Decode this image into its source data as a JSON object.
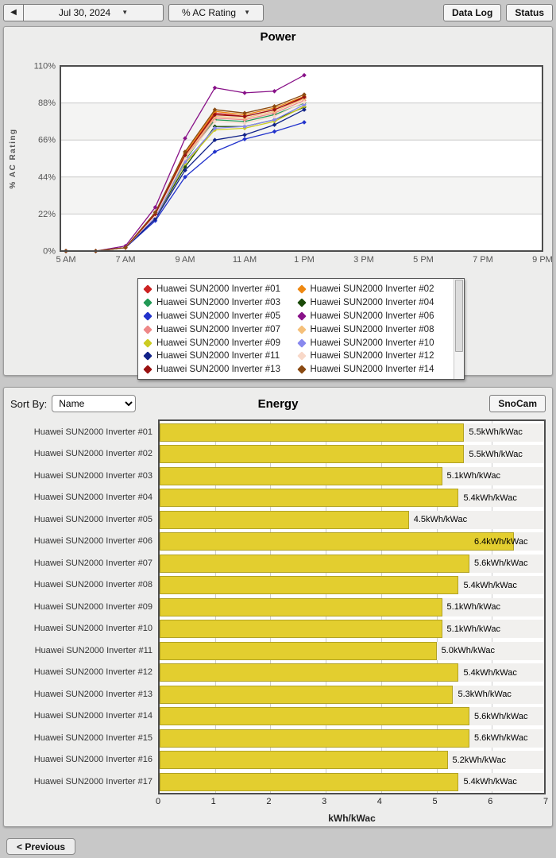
{
  "toolbar": {
    "prev_arrow": "◀",
    "date": "Jul 30, 2024",
    "metric": "% AC Rating",
    "dropdown_arrow": "▼",
    "data_log_label": "Data Log",
    "status_label": "Status"
  },
  "energy": {
    "sort_by_label": "Sort By:",
    "sort_value": "Name",
    "snocam_label": "SnoCam"
  },
  "footer": {
    "previous_label": "< Previous"
  },
  "chart_data": [
    {
      "type": "line",
      "title": "Power",
      "ylabel": "% AC Rating",
      "ylim": [
        0,
        110
      ],
      "ytick_values": [
        0,
        22,
        44,
        66,
        88,
        110
      ],
      "ytick_labels": [
        "0%",
        "22%",
        "44%",
        "66%",
        "88%",
        "110%"
      ],
      "xlim_hours": [
        5,
        21
      ],
      "xtick_hours": [
        5,
        7,
        9,
        11,
        13,
        15,
        17,
        19,
        21
      ],
      "xtick_labels": [
        "5 AM",
        "7 AM",
        "9 AM",
        "11 AM",
        "1 PM",
        "3 PM",
        "5 PM",
        "7 PM",
        "9 PM"
      ],
      "x_hours": [
        5,
        6,
        7,
        8,
        9,
        10,
        11,
        12,
        13
      ],
      "grid": true,
      "legend_position": "bottom",
      "series": [
        {
          "name": "Huawei SUN2000 Inverter #01",
          "color": "#cc2222",
          "values": [
            0,
            0,
            2,
            22,
            57,
            82,
            80,
            84,
            91
          ]
        },
        {
          "name": "Huawei SUN2000 Inverter #02",
          "color": "#ee8811",
          "values": [
            0,
            0,
            2,
            23,
            58,
            83,
            81,
            85,
            92
          ]
        },
        {
          "name": "Huawei SUN2000 Inverter #03",
          "color": "#229955",
          "values": [
            0,
            0,
            2,
            21,
            54,
            78,
            77,
            81,
            88
          ]
        },
        {
          "name": "Huawei SUN2000 Inverter #04",
          "color": "#1a4a08",
          "values": [
            0,
            0,
            2,
            20,
            50,
            74,
            74,
            78,
            85.5
          ]
        },
        {
          "name": "Huawei SUN2000 Inverter #05",
          "color": "#2233cc",
          "values": [
            0,
            0,
            2,
            18,
            44,
            59,
            66.5,
            71,
            76.5
          ]
        },
        {
          "name": "Huawei SUN2000 Inverter #06",
          "color": "#881188",
          "values": [
            0,
            0,
            3,
            26,
            67,
            97,
            94,
            95,
            104.5
          ]
        },
        {
          "name": "Huawei SUN2000 Inverter #07",
          "color": "#ee8888",
          "values": [
            0,
            0,
            2,
            21,
            55,
            79,
            78,
            82,
            89.5
          ]
        },
        {
          "name": "Huawei SUN2000 Inverter #08",
          "color": "#f5c07a",
          "values": [
            0,
            0,
            2,
            22,
            56,
            80,
            79,
            83,
            90.5
          ]
        },
        {
          "name": "Huawei SUN2000 Inverter #09",
          "color": "#cccc22",
          "values": [
            0,
            0,
            2,
            20,
            52,
            72,
            73,
            77,
            86
          ]
        },
        {
          "name": "Huawei SUN2000 Inverter #10",
          "color": "#8888ee",
          "values": [
            0,
            0,
            2,
            20,
            53,
            73,
            74,
            78,
            87
          ]
        },
        {
          "name": "Huawei SUN2000 Inverter #11",
          "color": "#112288",
          "values": [
            0,
            0,
            2,
            19,
            48,
            66,
            69,
            75,
            84
          ]
        },
        {
          "name": "Huawei SUN2000 Inverter #12",
          "color": "#f8d8c8",
          "values": [
            0,
            0,
            2,
            21,
            55,
            77,
            76,
            80,
            88.5
          ]
        },
        {
          "name": "Huawei SUN2000 Inverter #13",
          "color": "#991111",
          "values": [
            0,
            0,
            2,
            22,
            57,
            81,
            80,
            84,
            91.5
          ]
        },
        {
          "name": "Huawei SUN2000 Inverter #14",
          "color": "#8a4a12",
          "values": [
            0,
            0,
            2,
            23,
            59,
            84,
            82,
            86,
            93
          ]
        }
      ]
    },
    {
      "type": "bar",
      "title": "Energy",
      "xlabel": "kWh/kWac",
      "unit": "kWh/kWac",
      "xlim": [
        0,
        7
      ],
      "xticks": [
        0,
        1,
        2,
        3,
        4,
        5,
        6,
        7
      ],
      "bar_color": "#e3ce2f",
      "categories": [
        "Huawei SUN2000 Inverter #01",
        "Huawei SUN2000 Inverter #02",
        "Huawei SUN2000 Inverter #03",
        "Huawei SUN2000 Inverter #04",
        "Huawei SUN2000 Inverter #05",
        "Huawei SUN2000 Inverter #06",
        "Huawei SUN2000 Inverter #07",
        "Huawei SUN2000 Inverter #08",
        "Huawei SUN2000 Inverter #09",
        "Huawei SUN2000 Inverter #10",
        "Huawei SUN2000 Inverter #11",
        "Huawei SUN2000 Inverter #12",
        "Huawei SUN2000 Inverter #13",
        "Huawei SUN2000 Inverter #14",
        "Huawei SUN2000 Inverter #15",
        "Huawei SUN2000 Inverter #16",
        "Huawei SUN2000 Inverter #17"
      ],
      "values": [
        5.5,
        5.5,
        5.1,
        5.4,
        4.5,
        6.4,
        5.6,
        5.4,
        5.1,
        5.1,
        5.0,
        5.4,
        5.3,
        5.6,
        5.6,
        5.2,
        5.4
      ]
    }
  ]
}
